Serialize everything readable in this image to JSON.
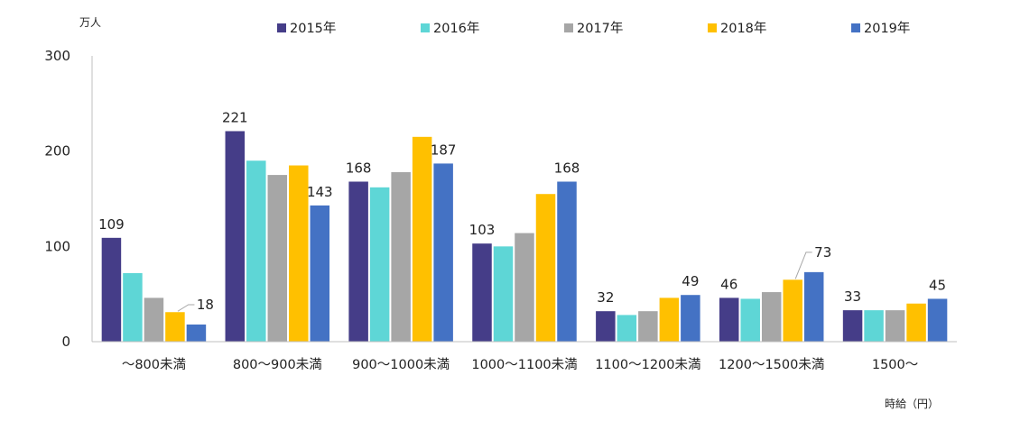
{
  "chart_data": {
    "type": "bar",
    "y_unit": "万人",
    "x_unit": "時給（円）",
    "ylim": [
      0,
      300
    ],
    "yticks": [
      0,
      100,
      200,
      300
    ],
    "grid": false,
    "legend_position": "top",
    "categories": [
      "～800未満",
      "800～900未満",
      "900～1000未満",
      "1000～1100未満",
      "1100～1200未満",
      "1200～1500未満",
      "1500～"
    ],
    "series": [
      {
        "name": "2015年",
        "color": "#453D88",
        "values": [
          109,
          221,
          168,
          103,
          32,
          46,
          33
        ]
      },
      {
        "name": "2016年",
        "color": "#5ED6D6",
        "values": [
          72,
          190,
          162,
          100,
          28,
          45,
          33
        ]
      },
      {
        "name": "2017年",
        "color": "#A6A6A6",
        "values": [
          46,
          175,
          178,
          114,
          32,
          52,
          33
        ]
      },
      {
        "name": "2018年",
        "color": "#FFC000",
        "values": [
          31,
          185,
          215,
          155,
          46,
          65,
          40
        ]
      },
      {
        "name": "2019年",
        "color": "#4472C4",
        "values": [
          18,
          143,
          187,
          168,
          49,
          73,
          45
        ]
      }
    ],
    "data_labels": [
      {
        "category": 0,
        "series": 0,
        "text": "109"
      },
      {
        "category": 0,
        "series": 4,
        "text": "18",
        "leader": true
      },
      {
        "category": 1,
        "series": 0,
        "text": "221"
      },
      {
        "category": 1,
        "series": 4,
        "text": "143"
      },
      {
        "category": 2,
        "series": 0,
        "text": "168"
      },
      {
        "category": 2,
        "series": 4,
        "text": "187"
      },
      {
        "category": 3,
        "series": 0,
        "text": "103"
      },
      {
        "category": 3,
        "series": 4,
        "text": "168"
      },
      {
        "category": 4,
        "series": 0,
        "text": "32"
      },
      {
        "category": 4,
        "series": 4,
        "text": "49"
      },
      {
        "category": 5,
        "series": 0,
        "text": "46"
      },
      {
        "category": 5,
        "series": 4,
        "text": "73",
        "leader": true
      },
      {
        "category": 6,
        "series": 0,
        "text": "33"
      },
      {
        "category": 6,
        "series": 4,
        "text": "45"
      }
    ]
  }
}
